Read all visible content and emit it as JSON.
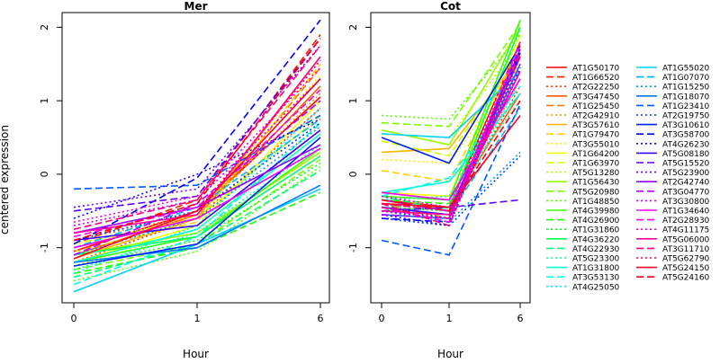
{
  "ylabel": "centered expression",
  "xlabel": "Hour",
  "panels": [
    {
      "title": "Mer"
    },
    {
      "title": "Cot"
    }
  ],
  "legend": {
    "entries": [
      {
        "name": "AT1G50170",
        "color": "#ff0000",
        "dash": "solid"
      },
      {
        "name": "AT1G66520",
        "color": "#ff1e00",
        "dash": "dashed"
      },
      {
        "name": "AT2G22250",
        "color": "#ff3c00",
        "dash": "dotted"
      },
      {
        "name": "AT3G47450",
        "color": "#ff5a00",
        "dash": "solid"
      },
      {
        "name": "AT1G25450",
        "color": "#ff7800",
        "dash": "dashed"
      },
      {
        "name": "AT2G42910",
        "color": "#ff9600",
        "dash": "dotted"
      },
      {
        "name": "AT3G57610",
        "color": "#ffb400",
        "dash": "solid"
      },
      {
        "name": "AT1G79470",
        "color": "#ffd200",
        "dash": "dashed"
      },
      {
        "name": "AT3G55010",
        "color": "#fff000",
        "dash": "dotted"
      },
      {
        "name": "AT1G64200",
        "color": "#f0ff00",
        "dash": "solid"
      },
      {
        "name": "AT1G63970",
        "color": "#d2ff00",
        "dash": "dashed"
      },
      {
        "name": "AT5G13280",
        "color": "#b4ff00",
        "dash": "dotted"
      },
      {
        "name": "AT1G56430",
        "color": "#96ff00",
        "dash": "solid"
      },
      {
        "name": "AT5G20980",
        "color": "#78ff00",
        "dash": "dashed"
      },
      {
        "name": "AT1G48850",
        "color": "#5aff00",
        "dash": "dotted"
      },
      {
        "name": "AT4G39980",
        "color": "#3cff00",
        "dash": "solid"
      },
      {
        "name": "AT4G26900",
        "color": "#1eff00",
        "dash": "dashed"
      },
      {
        "name": "AT1G31860",
        "color": "#00ff1e",
        "dash": "dotted"
      },
      {
        "name": "AT4G36220",
        "color": "#00ff5a",
        "dash": "solid"
      },
      {
        "name": "AT4G22930",
        "color": "#00ff78",
        "dash": "dashed"
      },
      {
        "name": "AT5G23300",
        "color": "#00ff96",
        "dash": "dotted"
      },
      {
        "name": "AT1G31800",
        "color": "#00ffd2",
        "dash": "solid"
      },
      {
        "name": "AT3G53130",
        "color": "#00ffe6",
        "dash": "dashed"
      },
      {
        "name": "AT4G25050",
        "color": "#00f0ff",
        "dash": "dotted"
      },
      {
        "name": "AT1G55020",
        "color": "#00d2ff",
        "dash": "solid"
      },
      {
        "name": "AT1G07070",
        "color": "#00b4ff",
        "dash": "dashed"
      },
      {
        "name": "AT1G15250",
        "color": "#0096ff",
        "dash": "dotted"
      },
      {
        "name": "AT1G18070",
        "color": "#0078ff",
        "dash": "solid"
      },
      {
        "name": "AT1G23410",
        "color": "#005aff",
        "dash": "dashed"
      },
      {
        "name": "AT2G19750",
        "color": "#003cff",
        "dash": "dotted"
      },
      {
        "name": "AT3G10610",
        "color": "#001eff",
        "dash": "solid"
      },
      {
        "name": "AT3G58700",
        "color": "#0000ff",
        "dash": "dashed"
      },
      {
        "name": "AT4G26230",
        "color": "#1e00ff",
        "dash": "dotted"
      },
      {
        "name": "AT5G08180",
        "color": "#3c00ff",
        "dash": "solid"
      },
      {
        "name": "AT5G15520",
        "color": "#5a00ff",
        "dash": "dashed"
      },
      {
        "name": "AT5G23900",
        "color": "#7800ff",
        "dash": "dotted"
      },
      {
        "name": "AT2G42740",
        "color": "#9600ff",
        "dash": "solid"
      },
      {
        "name": "AT3G04770",
        "color": "#b400ff",
        "dash": "dashed"
      },
      {
        "name": "AT3G30800",
        "color": "#d200ff",
        "dash": "dotted"
      },
      {
        "name": "AT1G34640",
        "color": "#f000ff",
        "dash": "solid"
      },
      {
        "name": "AT2G28930",
        "color": "#ff00e6",
        "dash": "dashed"
      },
      {
        "name": "AT4G11175",
        "color": "#ff00c8",
        "dash": "dotted"
      },
      {
        "name": "AT5G06000",
        "color": "#ff00a0",
        "dash": "solid"
      },
      {
        "name": "AT3G11710",
        "color": "#ff0078",
        "dash": "dashed"
      },
      {
        "name": "AT5G62790",
        "color": "#ff0050",
        "dash": "dotted"
      },
      {
        "name": "AT5G24150",
        "color": "#ff0028",
        "dash": "solid"
      },
      {
        "name": "AT5G24160",
        "color": "#ff000f",
        "dash": "dashed"
      }
    ]
  },
  "chart_data": [
    {
      "type": "line",
      "title": "Mer",
      "xlabel": "Hour",
      "ylabel": "centered expression",
      "x": [
        "0",
        "1",
        "6"
      ],
      "xticks": [
        "0",
        "1",
        "6"
      ],
      "yticks": [
        "-1",
        "0",
        "1",
        "2"
      ],
      "ylim": [
        -1.75,
        2.2
      ],
      "series": [
        {
          "name": "AT1G50170",
          "values": [
            -1.05,
            -0.5,
            1.05
          ]
        },
        {
          "name": "AT1G66520",
          "values": [
            -0.95,
            -0.35,
            1.9
          ]
        },
        {
          "name": "AT2G22250",
          "values": [
            -1.2,
            -0.6,
            0.9
          ]
        },
        {
          "name": "AT3G47450",
          "values": [
            -1.1,
            -0.55,
            1.2
          ]
        },
        {
          "name": "AT1G25450",
          "values": [
            -1.0,
            -0.6,
            1.45
          ]
        },
        {
          "name": "AT2G42910",
          "values": [
            -0.9,
            -0.55,
            1.1
          ]
        },
        {
          "name": "AT3G57610",
          "values": [
            -1.15,
            -0.6,
            1.6
          ]
        },
        {
          "name": "AT1G79470",
          "values": [
            -1.05,
            -0.65,
            1.5
          ]
        },
        {
          "name": "AT3G55010",
          "values": [
            -1.0,
            -0.55,
            1.35
          ]
        },
        {
          "name": "AT1G64200",
          "values": [
            -1.2,
            -0.7,
            1.0
          ]
        },
        {
          "name": "AT1G63970",
          "values": [
            -0.95,
            -0.6,
            0.8
          ]
        },
        {
          "name": "AT5G13280",
          "values": [
            -1.25,
            -0.75,
            0.6
          ]
        },
        {
          "name": "AT1G56430",
          "values": [
            -1.1,
            -0.8,
            0.3
          ]
        },
        {
          "name": "AT5G20980",
          "values": [
            -1.3,
            -0.95,
            0.2
          ]
        },
        {
          "name": "AT1G48850",
          "values": [
            -1.45,
            -1.05,
            0.1
          ]
        },
        {
          "name": "AT4G39980",
          "values": [
            -1.2,
            -0.85,
            0.35
          ]
        },
        {
          "name": "AT4G26900",
          "values": [
            -1.35,
            -1.0,
            -0.25
          ]
        },
        {
          "name": "AT1G31860",
          "values": [
            -1.25,
            -0.9,
            0.15
          ]
        },
        {
          "name": "AT4G36220",
          "values": [
            -1.1,
            -0.85,
            0.25
          ]
        },
        {
          "name": "AT4G22930",
          "values": [
            -1.4,
            -0.95,
            0.05
          ]
        },
        {
          "name": "AT5G23300",
          "values": [
            -1.3,
            -0.8,
            0.4
          ]
        },
        {
          "name": "AT1G31800",
          "values": [
            -1.2,
            -0.75,
            0.55
          ]
        },
        {
          "name": "AT3G53130",
          "values": [
            -1.5,
            -0.85,
            0.7
          ]
        },
        {
          "name": "AT4G25050",
          "values": [
            -1.35,
            -0.7,
            0.9
          ]
        },
        {
          "name": "AT1G55020",
          "values": [
            -1.6,
            -0.95,
            -0.2
          ]
        },
        {
          "name": "AT1G07070",
          "values": [
            -1.0,
            -0.45,
            0.75
          ]
        },
        {
          "name": "AT1G15250",
          "values": [
            -1.1,
            -0.6,
            0.65
          ]
        },
        {
          "name": "AT1G18070",
          "values": [
            -1.2,
            -1.0,
            -0.15
          ]
        },
        {
          "name": "AT1G23410",
          "values": [
            -0.2,
            -0.15,
            0.8
          ]
        },
        {
          "name": "AT2G19750",
          "values": [
            -0.9,
            -0.5,
            0.7
          ]
        },
        {
          "name": "AT3G10610",
          "values": [
            -1.25,
            -0.95,
            0.5
          ]
        },
        {
          "name": "AT3G58700",
          "values": [
            -0.95,
            -0.05,
            2.1
          ]
        },
        {
          "name": "AT4G26230",
          "values": [
            -0.6,
            0.0,
            0.75
          ]
        },
        {
          "name": "AT5G08180",
          "values": [
            -0.9,
            -0.7,
            0.6
          ]
        },
        {
          "name": "AT5G15520",
          "values": [
            -0.5,
            -0.3,
            1.85
          ]
        },
        {
          "name": "AT5G23900",
          "values": [
            -0.45,
            -0.2,
            1.75
          ]
        },
        {
          "name": "AT2G42740",
          "values": [
            -0.8,
            -0.45,
            0.4
          ]
        },
        {
          "name": "AT3G04770",
          "values": [
            -1.1,
            -0.4,
            1.0
          ]
        },
        {
          "name": "AT3G30800",
          "values": [
            -0.7,
            -0.35,
            1.3
          ]
        },
        {
          "name": "AT1G34640",
          "values": [
            -1.0,
            -0.6,
            0.35
          ]
        },
        {
          "name": "AT2G28930",
          "values": [
            -0.85,
            -0.45,
            1.15
          ]
        },
        {
          "name": "AT4G11175",
          "values": [
            -0.65,
            -0.3,
            1.45
          ]
        },
        {
          "name": "AT5G06000",
          "values": [
            -0.8,
            -0.55,
            1.6
          ]
        },
        {
          "name": "AT3G11710",
          "values": [
            -0.75,
            -0.35,
            1.75
          ]
        },
        {
          "name": "AT5G62790",
          "values": [
            -1.05,
            -0.5,
            1.55
          ]
        },
        {
          "name": "AT5G24150",
          "values": [
            -1.15,
            -0.5,
            1.3
          ]
        },
        {
          "name": "AT5G24160",
          "values": [
            -0.9,
            -0.4,
            1.85
          ]
        }
      ]
    },
    {
      "type": "line",
      "title": "Cot",
      "xlabel": "Hour",
      "x": [
        "0",
        "1",
        "6"
      ],
      "xticks": [
        "0",
        "1",
        "6"
      ],
      "yticks": [
        "-1",
        "0",
        "1",
        "2"
      ],
      "ylim": [
        -1.75,
        2.2
      ],
      "series": [
        {
          "name": "AT1G50170",
          "values": [
            -0.35,
            -0.45,
            1.8
          ]
        },
        {
          "name": "AT1G66520",
          "values": [
            -0.4,
            -0.5,
            1.4
          ]
        },
        {
          "name": "AT2G22250",
          "values": [
            -0.45,
            -0.55,
            1.2
          ]
        },
        {
          "name": "AT3G47450",
          "values": [
            -0.5,
            -0.45,
            1.1
          ]
        },
        {
          "name": "AT1G25450",
          "values": [
            -0.4,
            -0.6,
            1.5
          ]
        },
        {
          "name": "AT2G42910",
          "values": [
            -0.3,
            -0.5,
            1.3
          ]
        },
        {
          "name": "AT3G57610",
          "values": [
            0.3,
            0.35,
            1.6
          ]
        },
        {
          "name": "AT1G79470",
          "values": [
            0.05,
            -0.1,
            1.7
          ]
        },
        {
          "name": "AT3G55010",
          "values": [
            0.2,
            0.15,
            1.5
          ]
        },
        {
          "name": "AT1G64200",
          "values": [
            -0.25,
            -0.3,
            1.9
          ]
        },
        {
          "name": "AT1G63970",
          "values": [
            0.45,
            0.25,
            1.7
          ]
        },
        {
          "name": "AT5G13280",
          "values": [
            0.55,
            0.5,
            1.8
          ]
        },
        {
          "name": "AT1G56430",
          "values": [
            0.6,
            0.4,
            2.0
          ]
        },
        {
          "name": "AT5G20980",
          "values": [
            0.7,
            0.65,
            2.05
          ]
        },
        {
          "name": "AT1G48850",
          "values": [
            0.8,
            0.75,
            1.9
          ]
        },
        {
          "name": "AT4G39980",
          "values": [
            -0.3,
            -0.35,
            2.1
          ]
        },
        {
          "name": "AT4G26900",
          "values": [
            -0.35,
            -0.4,
            1.6
          ]
        },
        {
          "name": "AT1G31860",
          "values": [
            -0.45,
            -0.5,
            1.5
          ]
        },
        {
          "name": "AT4G36220",
          "values": [
            -0.5,
            -0.45,
            2.0
          ]
        },
        {
          "name": "AT4G22930",
          "values": [
            -0.3,
            -0.5,
            1.4
          ]
        },
        {
          "name": "AT5G23300",
          "values": [
            -0.4,
            -0.6,
            1.3
          ]
        },
        {
          "name": "AT1G31800",
          "values": [
            -0.25,
            -0.1,
            1.1
          ]
        },
        {
          "name": "AT3G53130",
          "values": [
            -0.3,
            -0.05,
            1.2
          ]
        },
        {
          "name": "AT4G25050",
          "values": [
            -0.35,
            -0.3,
            1.0
          ]
        },
        {
          "name": "AT1G55020",
          "values": [
            0.55,
            0.5,
            1.4
          ]
        },
        {
          "name": "AT1G07070",
          "values": [
            -0.45,
            -0.55,
            0.9
          ]
        },
        {
          "name": "AT1G15250",
          "values": [
            -0.5,
            -0.65,
            0.3
          ]
        },
        {
          "name": "AT1G18070",
          "values": [
            -0.55,
            -0.6,
            1.5
          ]
        },
        {
          "name": "AT1G23410",
          "values": [
            -0.9,
            -1.1,
            0.95
          ]
        },
        {
          "name": "AT2G19750",
          "values": [
            -0.6,
            -0.7,
            0.25
          ]
        },
        {
          "name": "AT3G10610",
          "values": [
            0.5,
            0.15,
            1.75
          ]
        },
        {
          "name": "AT3G58700",
          "values": [
            -0.6,
            -0.65,
            1.65
          ]
        },
        {
          "name": "AT4G26230",
          "values": [
            -0.55,
            -0.7,
            1.6
          ]
        },
        {
          "name": "AT5G08180",
          "values": [
            -0.45,
            -0.55,
            1.7
          ]
        },
        {
          "name": "AT5G15520",
          "values": [
            -0.5,
            -0.45,
            -0.35
          ]
        },
        {
          "name": "AT5G23900",
          "values": [
            -0.5,
            -0.6,
            1.45
          ]
        },
        {
          "name": "AT2G42740",
          "values": [
            -0.35,
            -0.5,
            1.6
          ]
        },
        {
          "name": "AT3G04770",
          "values": [
            -0.55,
            -0.6,
            1.75
          ]
        },
        {
          "name": "AT3G30800",
          "values": [
            -0.4,
            -0.5,
            1.5
          ]
        },
        {
          "name": "AT1G34640",
          "values": [
            -0.25,
            -0.35,
            1.3
          ]
        },
        {
          "name": "AT2G28930",
          "values": [
            -0.45,
            -0.65,
            1.8
          ]
        },
        {
          "name": "AT4G11175",
          "values": [
            -0.3,
            -0.45,
            1.7
          ]
        },
        {
          "name": "AT5G06000",
          "values": [
            -0.5,
            -0.55,
            1.4
          ]
        },
        {
          "name": "AT3G11710",
          "values": [
            -0.4,
            -0.7,
            1.65
          ]
        },
        {
          "name": "AT5G62790",
          "values": [
            -0.45,
            -0.6,
            1.6
          ]
        },
        {
          "name": "AT5G24150",
          "values": [
            -0.4,
            -0.45,
            0.8
          ]
        },
        {
          "name": "AT5G24160",
          "values": [
            -0.35,
            -0.5,
            1.0
          ]
        }
      ]
    }
  ]
}
